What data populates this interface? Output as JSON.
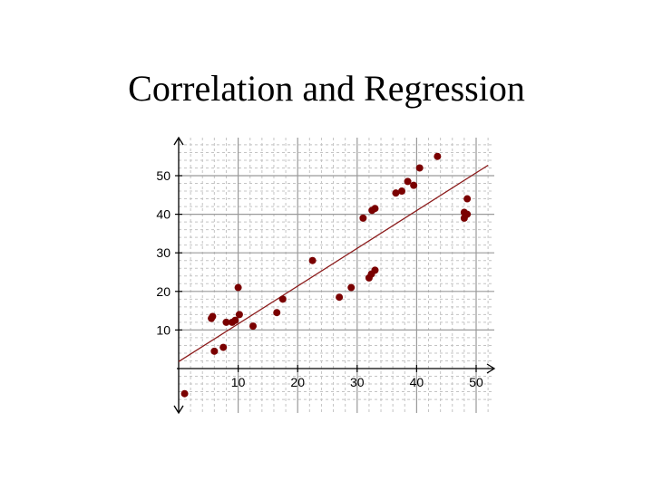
{
  "title": "Correlation and Regression",
  "chart_data": {
    "type": "scatter",
    "x_ticks": [
      "10",
      "20",
      "30",
      "40",
      "50"
    ],
    "y_ticks": [
      "10",
      "20",
      "30",
      "40",
      "50"
    ],
    "xlim": [
      0,
      52
    ],
    "ylim": [
      -8,
      60
    ],
    "grid": true,
    "colors": {
      "point": "#7a0000",
      "regression_line": "#8b1a1a",
      "major_grid": "#9a9a9a",
      "minor_grid": "#c4c4c4",
      "axis": "#000000"
    },
    "regression_line": {
      "x": [
        0,
        52
      ],
      "y": [
        1.8,
        52.7
      ]
    },
    "points": [
      {
        "x": 1,
        "y": -6.5
      },
      {
        "x": 5.5,
        "y": 13
      },
      {
        "x": 5.7,
        "y": 13.5
      },
      {
        "x": 6,
        "y": 4.5
      },
      {
        "x": 7.5,
        "y": 5.5
      },
      {
        "x": 8,
        "y": 12
      },
      {
        "x": 9,
        "y": 12
      },
      {
        "x": 9.5,
        "y": 12.5
      },
      {
        "x": 10,
        "y": 21
      },
      {
        "x": 10.2,
        "y": 14
      },
      {
        "x": 12.5,
        "y": 11
      },
      {
        "x": 16.5,
        "y": 14.5
      },
      {
        "x": 17.5,
        "y": 18
      },
      {
        "x": 22.5,
        "y": 28
      },
      {
        "x": 27,
        "y": 18.5
      },
      {
        "x": 29,
        "y": 21
      },
      {
        "x": 31,
        "y": 39
      },
      {
        "x": 32,
        "y": 23.5
      },
      {
        "x": 32.4,
        "y": 24.5
      },
      {
        "x": 32.5,
        "y": 41
      },
      {
        "x": 33,
        "y": 41.5
      },
      {
        "x": 33,
        "y": 25.5
      },
      {
        "x": 36.5,
        "y": 45.5
      },
      {
        "x": 37.5,
        "y": 46
      },
      {
        "x": 38.5,
        "y": 48.5
      },
      {
        "x": 39.5,
        "y": 47.5
      },
      {
        "x": 40.5,
        "y": 52
      },
      {
        "x": 43.5,
        "y": 55
      },
      {
        "x": 48,
        "y": 40.5
      },
      {
        "x": 48.5,
        "y": 44
      },
      {
        "x": 48.5,
        "y": 40
      },
      {
        "x": 48,
        "y": 39
      }
    ]
  }
}
